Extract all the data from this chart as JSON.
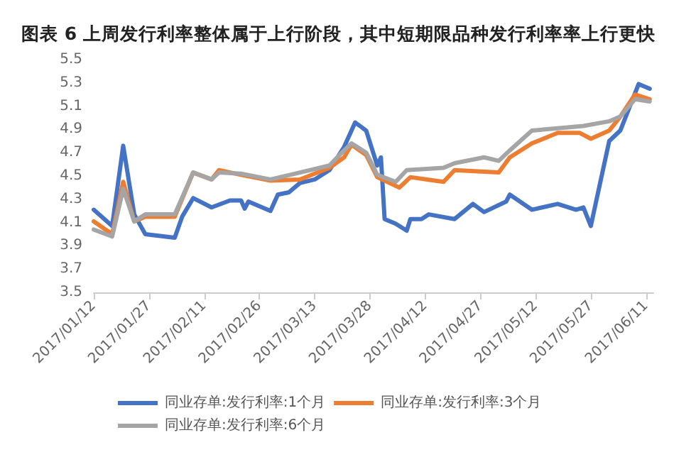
{
  "chart_data": {
    "type": "line",
    "title": "图表 6 上周发行利率整体属于上行阶段，其中短期限品种发行利率率上行更快",
    "xlim": [
      "2017-01-12",
      "2017-06-13"
    ],
    "xticks": [
      {
        "value": "2017-01-12",
        "label": "2017/01/12"
      },
      {
        "value": "2017-01-27",
        "label": "2017/01/27"
      },
      {
        "value": "2017-02-11",
        "label": "2017/02/11"
      },
      {
        "value": "2017-02-26",
        "label": "2017/02/26"
      },
      {
        "value": "2017-03-13",
        "label": "2017/03/13"
      },
      {
        "value": "2017-03-28",
        "label": "2017/03/28"
      },
      {
        "value": "2017-04-12",
        "label": "2017/04/12"
      },
      {
        "value": "2017-04-27",
        "label": "2017/04/27"
      },
      {
        "value": "2017-05-12",
        "label": "2017/05/12"
      },
      {
        "value": "2017-05-27",
        "label": "2017/05/27"
      },
      {
        "value": "2017-06-11",
        "label": "2017/06/11"
      }
    ],
    "ylim": [
      3.5,
      5.5
    ],
    "yticks": [
      3.5,
      3.7,
      3.9,
      4.1,
      4.3,
      4.5,
      4.7,
      4.9,
      5.1,
      5.3,
      5.5
    ],
    "grid": false,
    "legend": "bottom",
    "marker": "none",
    "line_style": "solid",
    "series": [
      {
        "name": "同业存单:发行利率:1个月",
        "color": "#4472c4",
        "x": [
          "2017-01-12",
          "2017-01-17",
          "2017-01-20",
          "2017-01-23",
          "2017-01-26",
          "2017-02-03",
          "2017-02-05",
          "2017-02-08",
          "2017-02-13",
          "2017-02-18",
          "2017-02-21",
          "2017-02-22",
          "2017-02-23",
          "2017-03-01",
          "2017-03-03",
          "2017-03-06",
          "2017-03-09",
          "2017-03-13",
          "2017-03-17",
          "2017-03-21",
          "2017-03-24",
          "2017-03-27",
          "2017-03-30",
          "2017-03-31",
          "2017-04-01",
          "2017-04-04",
          "2017-04-07",
          "2017-04-08",
          "2017-04-11",
          "2017-04-13",
          "2017-04-20",
          "2017-04-25",
          "2017-04-28",
          "2017-05-04",
          "2017-05-05",
          "2017-05-11",
          "2017-05-18",
          "2017-05-23",
          "2017-05-25",
          "2017-05-27",
          "2017-06-01",
          "2017-06-04",
          "2017-06-09",
          "2017-06-12"
        ],
        "values": [
          4.21,
          4.07,
          4.76,
          4.17,
          4.0,
          3.97,
          4.15,
          4.31,
          4.23,
          4.29,
          4.29,
          4.22,
          4.28,
          4.2,
          4.34,
          4.36,
          4.44,
          4.47,
          4.55,
          4.75,
          4.96,
          4.89,
          4.59,
          4.66,
          4.13,
          4.09,
          4.03,
          4.13,
          4.13,
          4.17,
          4.13,
          4.26,
          4.19,
          4.28,
          4.34,
          4.21,
          4.26,
          4.21,
          4.23,
          4.07,
          4.8,
          4.89,
          5.29,
          5.25
        ]
      },
      {
        "name": "同业存单:发行利率:3个月",
        "color": "#ed7d31",
        "x": [
          "2017-01-12",
          "2017-01-17",
          "2017-01-20",
          "2017-01-23",
          "2017-01-26",
          "2017-02-03",
          "2017-02-08",
          "2017-02-13",
          "2017-02-15",
          "2017-02-21",
          "2017-03-01",
          "2017-03-09",
          "2017-03-17",
          "2017-03-21",
          "2017-03-23",
          "2017-03-27",
          "2017-03-30",
          "2017-04-05",
          "2017-04-08",
          "2017-04-17",
          "2017-04-20",
          "2017-05-02",
          "2017-05-05",
          "2017-05-11",
          "2017-05-18",
          "2017-05-24",
          "2017-05-27",
          "2017-06-01",
          "2017-06-04",
          "2017-06-08",
          "2017-06-12"
        ],
        "values": [
          4.11,
          4.0,
          4.45,
          4.11,
          4.15,
          4.15,
          4.53,
          4.47,
          4.55,
          4.51,
          4.46,
          4.47,
          4.57,
          4.66,
          4.77,
          4.68,
          4.49,
          4.4,
          4.49,
          4.45,
          4.55,
          4.53,
          4.66,
          4.78,
          4.87,
          4.87,
          4.82,
          4.89,
          5.01,
          5.2,
          5.16
        ]
      },
      {
        "name": "同业存单:发行利率:6个月",
        "color": "#a5a5a5",
        "x": [
          "2017-01-12",
          "2017-01-17",
          "2017-01-20",
          "2017-01-23",
          "2017-01-26",
          "2017-02-03",
          "2017-02-08",
          "2017-02-13",
          "2017-02-15",
          "2017-02-21",
          "2017-03-01",
          "2017-03-09",
          "2017-03-17",
          "2017-03-21",
          "2017-03-23",
          "2017-03-27",
          "2017-03-30",
          "2017-04-04",
          "2017-04-07",
          "2017-04-17",
          "2017-04-20",
          "2017-04-28",
          "2017-05-02",
          "2017-05-05",
          "2017-05-11",
          "2017-05-18",
          "2017-05-25",
          "2017-06-01",
          "2017-06-04",
          "2017-06-08",
          "2017-06-12"
        ],
        "values": [
          4.04,
          3.98,
          4.39,
          4.11,
          4.17,
          4.17,
          4.53,
          4.47,
          4.53,
          4.52,
          4.47,
          4.53,
          4.59,
          4.72,
          4.78,
          4.7,
          4.51,
          4.45,
          4.55,
          4.57,
          4.61,
          4.66,
          4.63,
          4.72,
          4.89,
          4.91,
          4.93,
          4.97,
          5.01,
          5.16,
          5.14
        ]
      }
    ]
  }
}
